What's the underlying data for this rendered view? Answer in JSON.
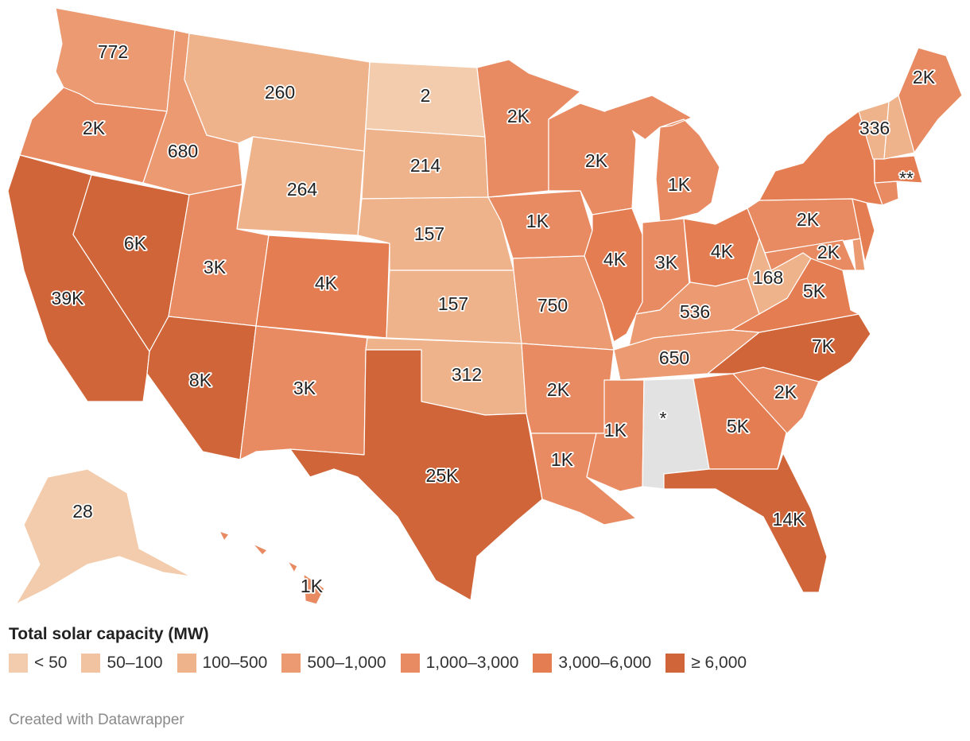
{
  "legend": {
    "title": "Total solar capacity (MW)",
    "bins": [
      {
        "label": "< 50",
        "color": "#f2ccac"
      },
      {
        "label": "50–100",
        "color": "#f1c3a0"
      },
      {
        "label": "100–500",
        "color": "#efb38c"
      },
      {
        "label": "500–1,000",
        "color": "#eb9a72"
      },
      {
        "label": "1,000–3,000",
        "color": "#e88b62"
      },
      {
        "label": "3,000–6,000",
        "color": "#e57d52"
      },
      {
        "label": "≥ 6,000",
        "color": "#cf6538"
      }
    ]
  },
  "no_data_color": "#e2e2e2",
  "credit": "Created with Datawrapper",
  "states": [
    {
      "id": "WA",
      "label": "772",
      "bin": 3
    },
    {
      "id": "OR",
      "label": "2K",
      "bin": 4
    },
    {
      "id": "CA",
      "label": "39K",
      "bin": 6
    },
    {
      "id": "NV",
      "label": "6K",
      "bin": 6
    },
    {
      "id": "ID",
      "label": "680",
      "bin": 3
    },
    {
      "id": "MT",
      "label": "260",
      "bin": 2
    },
    {
      "id": "WY",
      "label": "264",
      "bin": 2
    },
    {
      "id": "UT",
      "label": "3K",
      "bin": 4
    },
    {
      "id": "AZ",
      "label": "8K",
      "bin": 6
    },
    {
      "id": "CO",
      "label": "4K",
      "bin": 5
    },
    {
      "id": "NM",
      "label": "3K",
      "bin": 4
    },
    {
      "id": "ND",
      "label": "2",
      "bin": 0
    },
    {
      "id": "SD",
      "label": "214",
      "bin": 2
    },
    {
      "id": "NE",
      "label": "157",
      "bin": 2
    },
    {
      "id": "KS",
      "label": "157",
      "bin": 2
    },
    {
      "id": "OK",
      "label": "312",
      "bin": 2
    },
    {
      "id": "TX",
      "label": "25K",
      "bin": 6
    },
    {
      "id": "MN",
      "label": "2K",
      "bin": 4
    },
    {
      "id": "IA",
      "label": "1K",
      "bin": 4
    },
    {
      "id": "MO",
      "label": "750",
      "bin": 3
    },
    {
      "id": "AR",
      "label": "2K",
      "bin": 4
    },
    {
      "id": "LA",
      "label": "1K",
      "bin": 4
    },
    {
      "id": "WI",
      "label": "2K",
      "bin": 4
    },
    {
      "id": "IL",
      "label": "4K",
      "bin": 5
    },
    {
      "id": "MI",
      "label": "1K",
      "bin": 4
    },
    {
      "id": "IN",
      "label": "3K",
      "bin": 4
    },
    {
      "id": "OH",
      "label": "4K",
      "bin": 5
    },
    {
      "id": "KY",
      "label": "536",
      "bin": 3
    },
    {
      "id": "TN",
      "label": "650",
      "bin": 3
    },
    {
      "id": "MS",
      "label": "1K",
      "bin": 4
    },
    {
      "id": "AL",
      "label": "*",
      "bin": -1
    },
    {
      "id": "GA",
      "label": "5K",
      "bin": 5
    },
    {
      "id": "FL",
      "label": "14K",
      "bin": 6
    },
    {
      "id": "SC",
      "label": "2K",
      "bin": 4
    },
    {
      "id": "NC",
      "label": "7K",
      "bin": 6
    },
    {
      "id": "VA",
      "label": "5K",
      "bin": 5
    },
    {
      "id": "WV",
      "label": "168",
      "bin": 2
    },
    {
      "id": "PA",
      "label": "2K",
      "bin": 4
    },
    {
      "id": "MD",
      "label": "2K",
      "bin": 4
    },
    {
      "id": "NY",
      "label": "",
      "bin": 5
    },
    {
      "id": "NJ",
      "label": "",
      "bin": 5
    },
    {
      "id": "DE",
      "label": "",
      "bin": 3
    },
    {
      "id": "CT",
      "label": "",
      "bin": 4
    },
    {
      "id": "MA",
      "label": "**",
      "bin": 5
    },
    {
      "id": "VT",
      "label": "336",
      "bin": 2
    },
    {
      "id": "NH",
      "label": "",
      "bin": 2
    },
    {
      "id": "ME",
      "label": "2K",
      "bin": 4
    },
    {
      "id": "AK",
      "label": "28",
      "bin": 0
    },
    {
      "id": "HI",
      "label": "1K",
      "bin": 4
    }
  ]
}
